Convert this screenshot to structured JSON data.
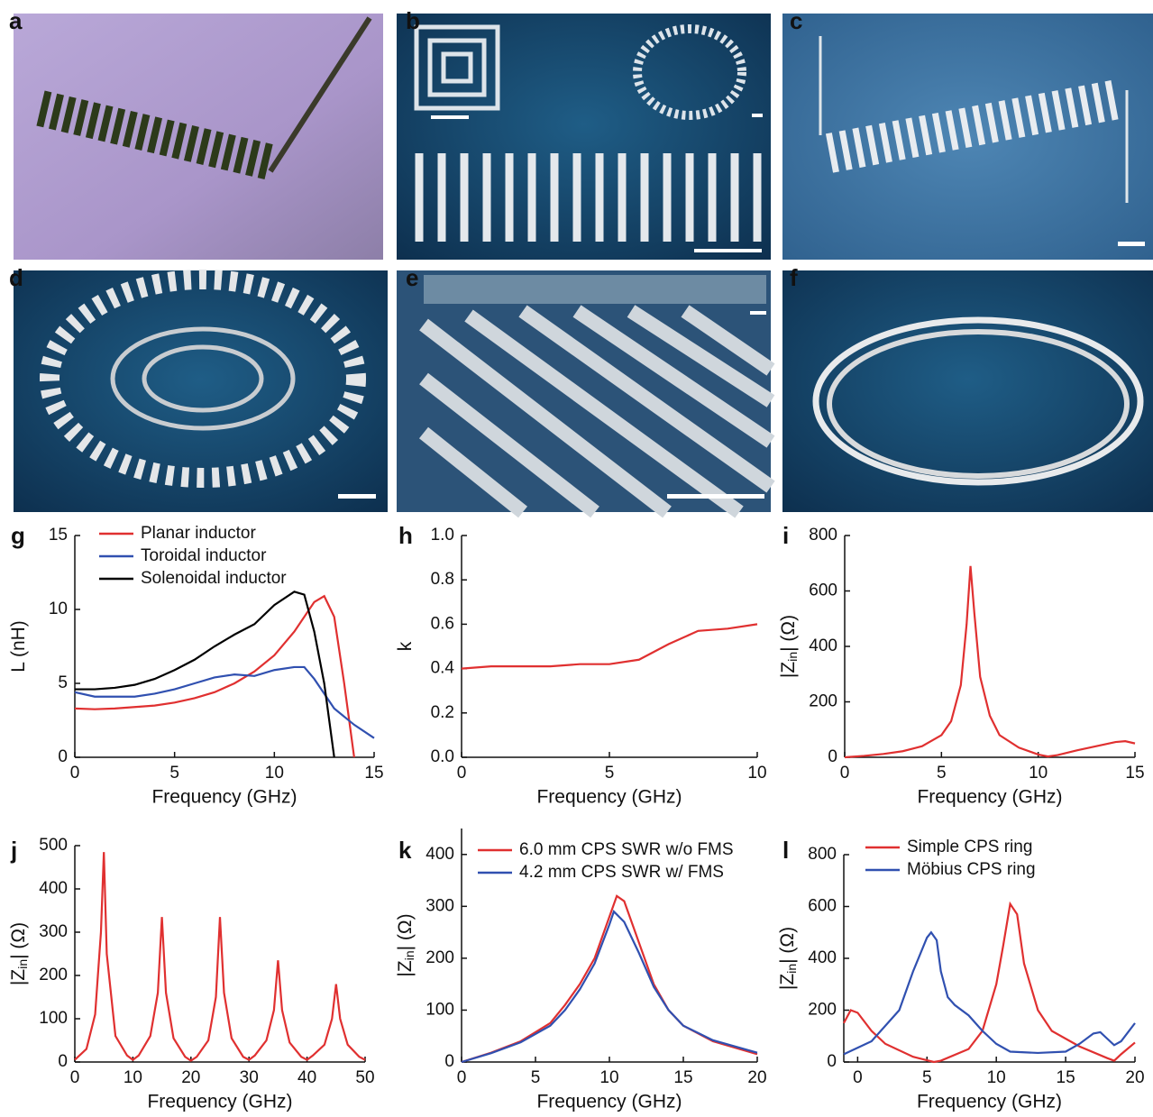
{
  "photo_panels": [
    "a",
    "b",
    "c",
    "d",
    "e",
    "f"
  ],
  "chart_data": [
    {
      "type": "line",
      "panel": "g",
      "xlabel": "Frequency (GHz)",
      "ylabel": [
        "L (nH)"
      ],
      "xlim": [
        0,
        15
      ],
      "ylim": [
        0,
        15
      ],
      "xticks": [
        0,
        5,
        10,
        15
      ],
      "yticks": [
        0,
        5,
        10,
        15
      ],
      "legend": "upper left",
      "series": [
        {
          "name": "Planar inductor",
          "color": "#e03030",
          "x": [
            0,
            1,
            2,
            3,
            4,
            5,
            6,
            7,
            8,
            9,
            10,
            11,
            12,
            12.5,
            13,
            13.5,
            14
          ],
          "values": [
            3.3,
            3.25,
            3.3,
            3.4,
            3.5,
            3.7,
            4.0,
            4.4,
            5.0,
            5.8,
            6.9,
            8.5,
            10.5,
            10.9,
            9.5,
            5,
            0
          ]
        },
        {
          "name": "Toroidal inductor",
          "color": "#3050b0",
          "x": [
            0,
            1,
            2,
            3,
            4,
            5,
            6,
            7,
            8,
            9,
            10,
            11,
            11.5,
            12,
            13,
            14,
            15
          ],
          "values": [
            4.4,
            4.1,
            4.1,
            4.1,
            4.3,
            4.6,
            5.0,
            5.4,
            5.6,
            5.5,
            5.9,
            6.1,
            6.1,
            5.3,
            3.3,
            2.2,
            1.3
          ]
        },
        {
          "name": "Solenoidal inductor",
          "color": "#000000",
          "x": [
            0,
            1,
            2,
            3,
            4,
            5,
            6,
            7,
            8,
            9,
            10,
            11,
            11.5,
            12,
            12.5,
            13
          ],
          "values": [
            4.6,
            4.6,
            4.7,
            4.9,
            5.3,
            5.9,
            6.6,
            7.5,
            8.3,
            9.0,
            10.3,
            11.2,
            11.0,
            8.5,
            5,
            0
          ]
        }
      ]
    },
    {
      "type": "line",
      "panel": "h",
      "xlabel": "Frequency (GHz)",
      "ylabel": [
        "k"
      ],
      "xlim": [
        0,
        10
      ],
      "ylim": [
        0,
        1
      ],
      "xticks": [
        0,
        5,
        10
      ],
      "yticks": [
        {
          "value": 0,
          "label": "0.0"
        },
        0.2,
        0.4,
        0.6,
        0.8,
        {
          "value": 1,
          "label": "1.0"
        }
      ],
      "series": [
        {
          "color": "#e03030",
          "x": [
            0,
            1,
            2,
            3,
            4,
            5,
            6,
            7,
            8,
            9,
            10
          ],
          "values": [
            0.4,
            0.41,
            0.41,
            0.41,
            0.42,
            0.42,
            0.44,
            0.51,
            0.57,
            0.58,
            0.6
          ]
        }
      ]
    },
    {
      "type": "line",
      "panel": "i",
      "xlabel": "Frequency (GHz)",
      "ylabel": [
        "|Z",
        "in",
        "| (Ω)"
      ],
      "xlim": [
        0,
        15
      ],
      "ylim": [
        0,
        800
      ],
      "xticks": [
        0,
        5,
        10,
        15
      ],
      "yticks": [
        0,
        200,
        400,
        600,
        800
      ],
      "series": [
        {
          "color": "#e03030",
          "x": [
            0,
            1,
            2,
            3,
            4,
            5,
            5.5,
            6,
            6.3,
            6.5,
            6.7,
            7,
            7.5,
            8,
            9,
            10,
            10.5,
            11,
            12,
            13,
            14,
            14.5,
            15
          ],
          "values": [
            0,
            5,
            12,
            22,
            40,
            80,
            130,
            260,
            480,
            690,
            520,
            290,
            150,
            80,
            35,
            10,
            3,
            8,
            25,
            40,
            55,
            58,
            50
          ]
        }
      ]
    },
    {
      "type": "line",
      "panel": "j",
      "xlabel": "Frequency (GHz)",
      "ylabel": [
        "|Z",
        "in",
        "| (Ω)"
      ],
      "xlim": [
        0,
        50
      ],
      "ylim": [
        0,
        500
      ],
      "xticks": [
        0,
        10,
        20,
        30,
        40,
        50
      ],
      "yticks": [
        0,
        100,
        200,
        300,
        400,
        500
      ],
      "series": [
        {
          "color": "#e03030",
          "x": [
            0,
            2,
            3.5,
            4.5,
            5,
            5.5,
            7,
            9,
            10,
            11,
            13,
            14.3,
            15,
            15.7,
            17,
            19,
            20,
            21,
            23,
            24.3,
            25,
            25.7,
            27,
            29,
            30,
            31,
            33,
            34.3,
            35,
            35.7,
            37,
            39,
            40,
            41,
            43,
            44.3,
            45,
            45.7,
            47,
            49,
            50
          ],
          "values": [
            5,
            30,
            110,
            300,
            485,
            250,
            60,
            15,
            5,
            15,
            60,
            160,
            335,
            160,
            55,
            12,
            3,
            12,
            50,
            150,
            335,
            160,
            55,
            12,
            5,
            15,
            50,
            120,
            235,
            120,
            45,
            12,
            5,
            15,
            40,
            100,
            180,
            100,
            40,
            12,
            5
          ]
        }
      ]
    },
    {
      "type": "line",
      "panel": "k",
      "xlabel": "Frequency (GHz)",
      "ylabel": [
        "|Z",
        "in",
        "| (Ω)"
      ],
      "xlim": [
        0,
        20
      ],
      "ylim": [
        0,
        450
      ],
      "xticks": [
        0,
        5,
        10,
        15,
        20
      ],
      "yticks": [
        0,
        100,
        200,
        300,
        400
      ],
      "legend": "upper left",
      "series": [
        {
          "name": "6.0 mm CPS SWR w/o FMS",
          "color": "#e03030",
          "x": [
            0,
            2,
            4,
            6,
            7,
            8,
            9,
            10,
            10.5,
            11,
            12,
            13,
            14,
            15,
            17,
            20
          ],
          "values": [
            0,
            18,
            40,
            75,
            110,
            150,
            200,
            280,
            320,
            310,
            230,
            150,
            100,
            70,
            40,
            15
          ]
        },
        {
          "name": "4.2 mm CPS SWR w/ FMS",
          "color": "#3050b0",
          "x": [
            0,
            2,
            4,
            6,
            7,
            8,
            9,
            10,
            10.3,
            11,
            12,
            13,
            14,
            15,
            17,
            20
          ],
          "values": [
            0,
            17,
            38,
            70,
            100,
            140,
            190,
            265,
            290,
            270,
            210,
            145,
            100,
            70,
            42,
            18
          ]
        }
      ]
    },
    {
      "type": "line",
      "panel": "l",
      "xlabel": "Frequency (GHz)",
      "ylabel": [
        "|Z",
        "in",
        "| (Ω)"
      ],
      "xlim": [
        -1,
        20
      ],
      "ylim": [
        0,
        800
      ],
      "xticks": [
        0,
        5,
        10,
        15,
        20
      ],
      "yticks": [
        0,
        200,
        400,
        600,
        800
      ],
      "legend": "upper left",
      "series": [
        {
          "name": "Simple CPS ring",
          "color": "#e03030",
          "x": [
            -1,
            -0.5,
            0,
            1,
            2,
            4,
            5.5,
            6,
            8,
            9,
            10,
            10.5,
            11,
            11.5,
            12,
            13,
            14,
            16,
            18,
            18.5,
            19,
            20
          ],
          "values": [
            150,
            200,
            190,
            120,
            70,
            20,
            0,
            5,
            50,
            120,
            300,
            450,
            610,
            570,
            380,
            200,
            120,
            60,
            15,
            5,
            30,
            75
          ]
        },
        {
          "name": "Möbius CPS ring",
          "color": "#3050b0",
          "x": [
            -1,
            1,
            3,
            4,
            5,
            5.3,
            5.7,
            6,
            6.5,
            7,
            8,
            9,
            10,
            11,
            13,
            15,
            16,
            17,
            17.5,
            18,
            18.5,
            19,
            20
          ],
          "values": [
            30,
            80,
            200,
            350,
            480,
            500,
            470,
            350,
            250,
            220,
            180,
            120,
            70,
            40,
            35,
            40,
            70,
            110,
            115,
            90,
            65,
            80,
            150
          ]
        }
      ]
    }
  ]
}
